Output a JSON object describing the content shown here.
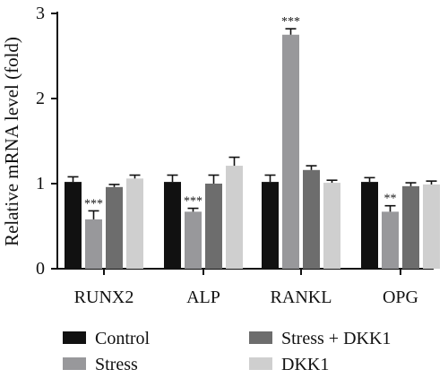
{
  "chart_data": {
    "type": "bar",
    "title": "",
    "xlabel": "",
    "ylabel": "Relative mRNA level (fold)",
    "ylim": [
      0,
      3
    ],
    "yticks": [
      0,
      1,
      2,
      3
    ],
    "grid": false,
    "legend_position": "bottom",
    "categories": [
      "RUNX2",
      "ALP",
      "RANKL",
      "OPG"
    ],
    "series": [
      {
        "name": "Control",
        "color": "#111111",
        "values": [
          1.02,
          1.02,
          1.02,
          1.02
        ],
        "errors": [
          0.06,
          0.08,
          0.08,
          0.05
        ],
        "annotations": [
          "",
          "",
          "",
          ""
        ]
      },
      {
        "name": "Stress",
        "color": "#98989b",
        "values": [
          0.58,
          0.67,
          2.75,
          0.67
        ],
        "errors": [
          0.1,
          0.04,
          0.07,
          0.07
        ],
        "annotations": [
          "***",
          "***",
          "***",
          "**"
        ]
      },
      {
        "name": "Stress + DKK1",
        "color": "#6d6d6d",
        "values": [
          0.96,
          1.0,
          1.16,
          0.97
        ],
        "errors": [
          0.03,
          0.1,
          0.05,
          0.04
        ],
        "annotations": [
          "",
          "",
          "",
          ""
        ]
      },
      {
        "name": "DKK1",
        "color": "#cfcfcf",
        "values": [
          1.06,
          1.21,
          1.01,
          0.99
        ],
        "errors": [
          0.04,
          0.1,
          0.03,
          0.04
        ],
        "annotations": [
          "",
          "",
          "",
          ""
        ]
      }
    ]
  }
}
